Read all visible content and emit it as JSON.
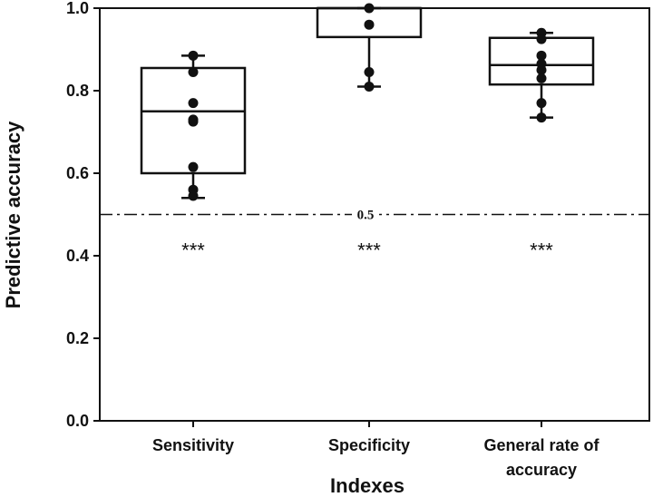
{
  "chart_data": {
    "type": "box",
    "xlabel": "Indexes",
    "ylabel": "Predictive accuracy",
    "ylim": [
      0.0,
      1.0
    ],
    "yticks": [
      "0.0",
      "0.2",
      "0.4",
      "0.6",
      "0.8",
      "1.0"
    ],
    "reference_line": {
      "value": 0.5,
      "label": "0.5",
      "style": "dash-dot"
    },
    "categories": [
      {
        "label_lines": [
          "Sensitivity"
        ],
        "whisker_low": 0.54,
        "q1": 0.6,
        "median": 0.75,
        "q3": 0.855,
        "whisker_high": 0.885,
        "points": [
          0.885,
          0.845,
          0.77,
          0.73,
          0.725,
          0.615,
          0.56,
          0.545
        ],
        "significance": "***"
      },
      {
        "label_lines": [
          "Specificity"
        ],
        "whisker_low": 0.81,
        "q1": 0.93,
        "median": 1.0,
        "q3": 1.0,
        "whisker_high": 1.0,
        "points": [
          1.0,
          0.96,
          0.845,
          0.81
        ],
        "significance": "***"
      },
      {
        "label_lines": [
          "General rate of",
          "accuracy"
        ],
        "whisker_low": 0.735,
        "q1": 0.815,
        "median": 0.862,
        "q3": 0.928,
        "whisker_high": 0.94,
        "points": [
          0.94,
          0.925,
          0.885,
          0.865,
          0.85,
          0.83,
          0.77,
          0.735
        ],
        "significance": "***"
      }
    ],
    "colors": {
      "ink": "#111111",
      "background": "#ffffff"
    }
  }
}
